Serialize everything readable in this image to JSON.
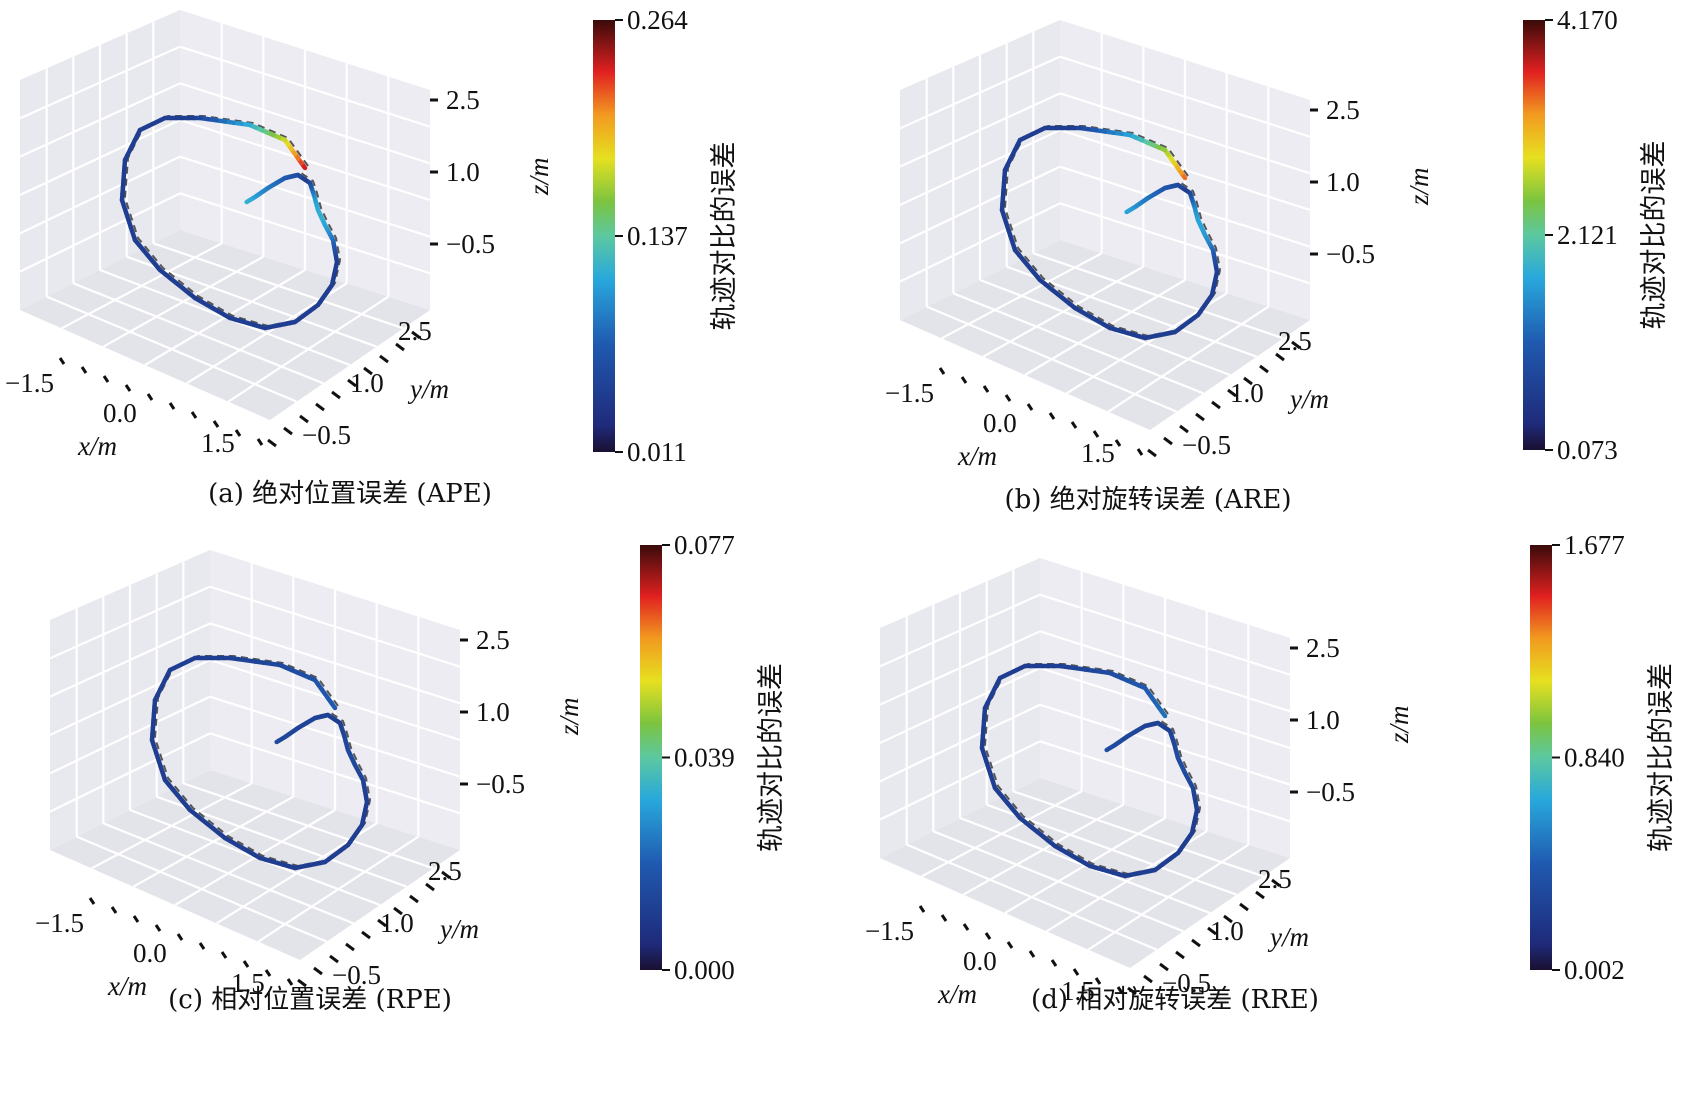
{
  "chart_data": [
    {
      "type": "line",
      "panel": "a",
      "caption": "(a) 绝对位置误差 (APE)",
      "x_ticks": [
        "−1.5",
        "0.0",
        "1.5"
      ],
      "y_ticks": [
        "2.5",
        "1.0",
        "−0.5"
      ],
      "z_ticks": [
        "2.5",
        "1.0",
        "−0.5"
      ],
      "xlabel": "x",
      "ylabel": "y",
      "zlabel": "z",
      "unit": "/m",
      "colorbar": {
        "label": "轨迹对比的误差",
        "ticks": [
          "0.264",
          "0.137",
          "0.011"
        ],
        "range": [
          0.011,
          0.264
        ]
      },
      "hotspot_level": 1.0
    },
    {
      "type": "line",
      "panel": "b",
      "caption": "(b) 绝对旋转误差 (ARE)",
      "x_ticks": [
        "−1.5",
        "0.0",
        "1.5"
      ],
      "y_ticks": [
        "2.5",
        "1.0",
        "−0.5"
      ],
      "z_ticks": [
        "2.5",
        "1.0",
        "−0.5"
      ],
      "xlabel": "x",
      "ylabel": "y",
      "zlabel": "z",
      "unit": "/m",
      "colorbar": {
        "label": "轨迹对比的误差",
        "ticks": [
          "4.170",
          "2.121",
          "0.073"
        ],
        "range": [
          0.073,
          4.17
        ]
      },
      "hotspot_level": 0.9
    },
    {
      "type": "line",
      "panel": "c",
      "caption": "(c) 相对位置误差 (RPE)",
      "x_ticks": [
        "−1.5",
        "0.0",
        "1.5"
      ],
      "y_ticks": [
        "2.5",
        "1.0",
        "−0.5"
      ],
      "z_ticks": [
        "2.5",
        "1.0",
        "−0.5"
      ],
      "xlabel": "x",
      "ylabel": "y",
      "zlabel": "z",
      "unit": "/m",
      "colorbar": {
        "label": "轨迹对比的误差",
        "ticks": [
          "0.077",
          "0.039",
          "0.000"
        ],
        "range": [
          0.0,
          0.077
        ]
      },
      "hotspot_level": 0.15
    },
    {
      "type": "line",
      "panel": "d",
      "caption": "(d) 相对旋转误差 (RRE)",
      "x_ticks": [
        "−1.5",
        "0.0",
        "1.5"
      ],
      "y_ticks": [
        "2.5",
        "1.0",
        "−0.5"
      ],
      "z_ticks": [
        "2.5",
        "1.0",
        "−0.5"
      ],
      "xlabel": "x",
      "ylabel": "y",
      "zlabel": "z",
      "unit": "/m",
      "colorbar": {
        "label": "轨迹对比的误差",
        "ticks": [
          "1.677",
          "0.840",
          "0.002"
        ],
        "range": [
          0.002,
          1.677
        ]
      },
      "hotspot_level": 0.2
    }
  ]
}
